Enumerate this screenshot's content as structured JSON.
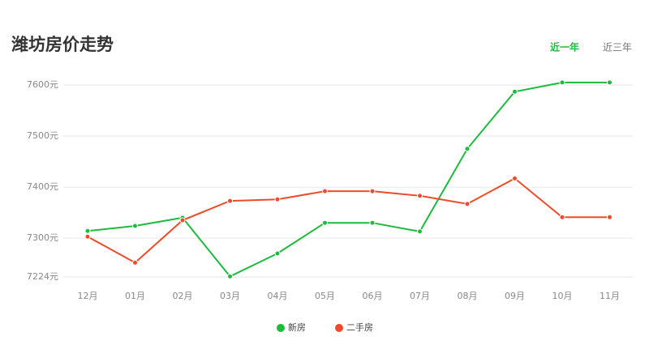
{
  "chart_data": {
    "type": "line",
    "title": "潍坊房价走势",
    "categories": [
      "12月",
      "01月",
      "02月",
      "03月",
      "04月",
      "05月",
      "06月",
      "07月",
      "08月",
      "09月",
      "10月",
      "11月"
    ],
    "series": [
      {
        "name": "新房",
        "color": "#1dbb3b",
        "values": [
          7314,
          7324,
          7340,
          7225,
          7270,
          7330,
          7330,
          7313,
          7475,
          7587,
          7605,
          7605
        ]
      },
      {
        "name": "二手房",
        "color": "#ee4b2b",
        "values": [
          7303,
          7252,
          7335,
          7373,
          7376,
          7392,
          7392,
          7383,
          7367,
          7417,
          7341,
          7341
        ]
      }
    ],
    "ylim": [
      7224,
      7610
    ],
    "yticks": [
      {
        "value": 7224,
        "label": "7224元"
      },
      {
        "value": 7300,
        "label": "7300元"
      },
      {
        "value": 7400,
        "label": "7400元"
      },
      {
        "value": 7500,
        "label": "7500元"
      },
      {
        "value": 7600,
        "label": "7600元"
      }
    ],
    "grid": true,
    "legend": "bottom"
  },
  "tabs": [
    "近一年",
    "近三年"
  ]
}
